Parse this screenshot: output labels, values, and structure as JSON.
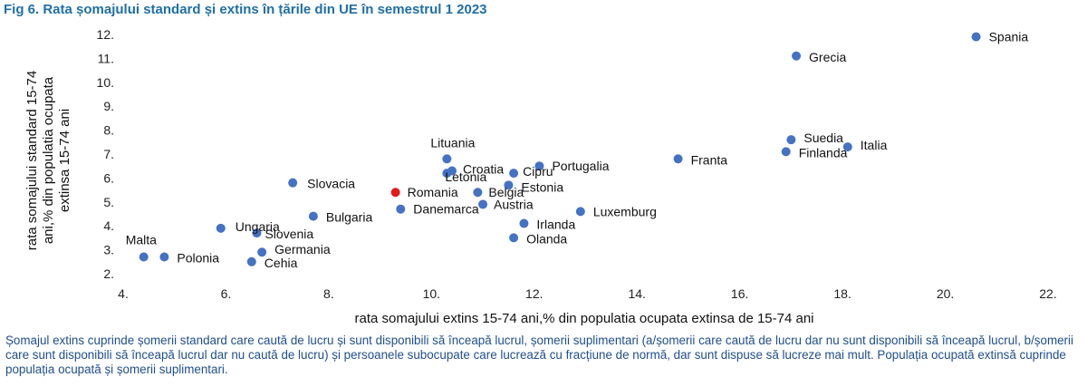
{
  "title": "Fig 6. Rata șomajului standard și extins în țările din UE în semestrul 1 2023",
  "footnote": "Șomajul extins cuprinde șomerii standard care caută de lucru și sunt disponibili să înceapă lucrul, șomerii suplimentari (a/șomerii care caută de lucru dar nu sunt disponibili să înceapă lucrul, b/șomerii care sunt disponibili să înceapă lucrul dar nu caută de lucru) și persoanele subocupate care lucrează cu fracțiune de normă, dar sunt dispuse să lucreze mai mult. Populația ocupată extinsă cuprinde populația ocupată și șomerii suplimentari.",
  "colors": {
    "point": "#4472c4",
    "highlight": "#e31a1c",
    "title": "#1f6fa6",
    "footnote": "#1f4e8c"
  },
  "chart_data": {
    "type": "scatter",
    "xlabel": "rata somajului extins  15-74 ani,% din populatia ocupata extinsa  de 15-74 ani",
    "ylabel_lines": [
      "rata somajului standard 15-74",
      "ani,% din populatia ocupata",
      "extinsa  15-74 ani"
    ],
    "xlim": [
      4,
      22
    ],
    "ylim": [
      2,
      12
    ],
    "xticks": [
      4,
      6,
      8,
      10,
      12,
      14,
      16,
      18,
      20,
      22
    ],
    "xtick_labels": [
      "4.",
      "6.",
      "8.",
      "10.",
      "12.",
      "14.",
      "16.",
      "18.",
      "20.",
      "22."
    ],
    "yticks": [
      2,
      3,
      4,
      5,
      6,
      7,
      8,
      9,
      10,
      11,
      12
    ],
    "ytick_labels": [
      "2.",
      "3.",
      "4.",
      "5.",
      "6.",
      "7.",
      "8.",
      "9.",
      "10.",
      "11.",
      "12."
    ],
    "grid": false,
    "points": [
      {
        "name": "Spania",
        "x": 20.6,
        "y": 11.9
      },
      {
        "name": "Grecia",
        "x": 17.1,
        "y": 11.1
      },
      {
        "name": "Suedia",
        "x": 17.0,
        "y": 7.6
      },
      {
        "name": "Finlanda",
        "x": 16.9,
        "y": 7.1
      },
      {
        "name": "Italia",
        "x": 18.1,
        "y": 7.3
      },
      {
        "name": "Franta",
        "x": 14.8,
        "y": 6.8
      },
      {
        "name": "Portugalia",
        "x": 12.1,
        "y": 6.5
      },
      {
        "name": "Lituania",
        "x": 10.3,
        "y": 6.8
      },
      {
        "name": "Croatia",
        "x": 10.4,
        "y": 6.3
      },
      {
        "name": "Letonia",
        "x": 10.3,
        "y": 6.2
      },
      {
        "name": "Cipru",
        "x": 11.6,
        "y": 6.2
      },
      {
        "name": "Estonia",
        "x": 11.5,
        "y": 5.7
      },
      {
        "name": "Romania",
        "x": 9.3,
        "y": 5.4,
        "highlight": true
      },
      {
        "name": "Belgia",
        "x": 10.9,
        "y": 5.4
      },
      {
        "name": "Austria",
        "x": 11.0,
        "y": 4.9
      },
      {
        "name": "Danemarca",
        "x": 9.4,
        "y": 4.7
      },
      {
        "name": "Luxemburg",
        "x": 12.9,
        "y": 4.6
      },
      {
        "name": "Slovacia",
        "x": 7.3,
        "y": 5.8
      },
      {
        "name": "Bulgaria",
        "x": 7.7,
        "y": 4.4
      },
      {
        "name": "Irlanda",
        "x": 11.8,
        "y": 4.1
      },
      {
        "name": "Olanda",
        "x": 11.6,
        "y": 3.5
      },
      {
        "name": "Ungaria",
        "x": 5.9,
        "y": 3.9
      },
      {
        "name": "Slovenia",
        "x": 6.6,
        "y": 3.7
      },
      {
        "name": "Germania",
        "x": 6.7,
        "y": 2.9
      },
      {
        "name": "Cehia",
        "x": 6.5,
        "y": 2.5
      },
      {
        "name": "Malta",
        "x": 4.4,
        "y": 2.7
      },
      {
        "name": "Polonia",
        "x": 4.8,
        "y": 2.7
      }
    ]
  }
}
